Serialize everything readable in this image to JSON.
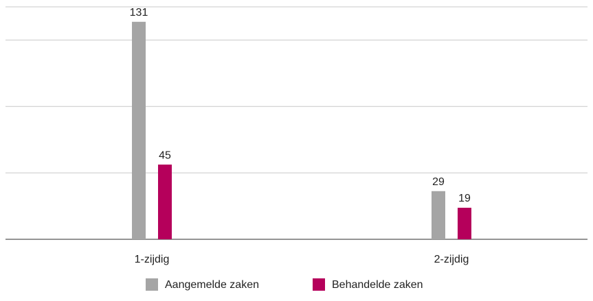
{
  "chart_data": {
    "type": "bar",
    "categories": [
      "1-zijdig",
      "2-zijdig"
    ],
    "series": [
      {
        "name": "Aangemelde zaken",
        "color": "#a5a5a5",
        "values": [
          131,
          29
        ]
      },
      {
        "name": "Behandelde zaken",
        "color": "#b5005b",
        "values": [
          45,
          19
        ]
      }
    ],
    "ylim": [
      0,
      140
    ],
    "yticks": [
      0,
      40,
      80,
      120,
      140
    ],
    "grid": true,
    "legend": "bottom"
  }
}
